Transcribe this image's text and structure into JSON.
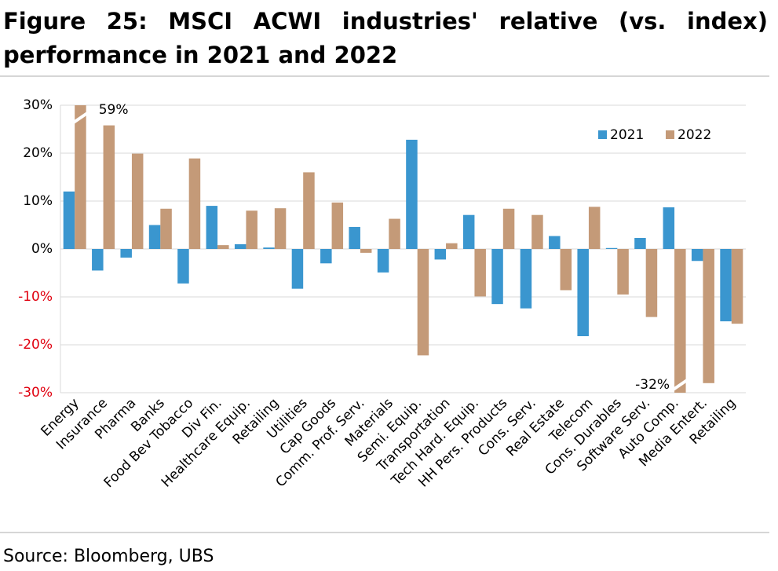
{
  "chart_data": {
    "type": "bar",
    "title": "Figure 25: MSCI ACWI industries' relative (vs. index) performance in 2021 and 2022",
    "source": "Source: Bloomberg, UBS",
    "categories": [
      "Energy",
      "Insurance",
      "Pharma",
      "Banks",
      "Food Bev Tobacco",
      "Div Fin.",
      "Healthcare Equip.",
      "Retailing",
      "Utilities",
      "Cap Goods",
      "Comm. Prof. Serv.",
      "Materials",
      "Semi. Equip.",
      "Transportation",
      "Tech Hard. Equip.",
      "HH Pers. Products",
      "Cons. Serv.",
      "Real Estate",
      "Telecom",
      "Cons. Durables",
      "Software Serv.",
      "Auto Comp.",
      "Media Entert.",
      "Retailing"
    ],
    "series": [
      {
        "name": "2021",
        "color": "#3a96cf",
        "values": [
          12.0,
          -4.5,
          -1.8,
          5.0,
          -7.2,
          9.0,
          1.0,
          0.3,
          -8.3,
          -3.0,
          4.6,
          -4.9,
          22.8,
          -2.2,
          7.1,
          -11.5,
          -12.4,
          2.7,
          -18.2,
          0.2,
          2.3,
          8.7,
          -2.5,
          -15.1
        ]
      },
      {
        "name": "2022",
        "color": "#c49a78",
        "values": [
          59,
          25.8,
          19.9,
          8.4,
          18.9,
          0.8,
          8.0,
          8.5,
          16.0,
          9.7,
          -0.8,
          6.3,
          -22.2,
          1.2,
          -9.9,
          8.4,
          7.1,
          -8.6,
          8.8,
          -9.5,
          -14.2,
          -32,
          -28.0,
          -15.6
        ],
        "value_labels": [
          "59%",
          null,
          null,
          null,
          null,
          null,
          null,
          null,
          null,
          null,
          null,
          null,
          null,
          null,
          null,
          null,
          null,
          null,
          null,
          null,
          null,
          "-32%",
          null,
          null
        ]
      }
    ],
    "ylim": [
      -30,
      30
    ],
    "yticks": [
      {
        "value": -30,
        "label": "-30%"
      },
      {
        "value": -20,
        "label": "-20%"
      },
      {
        "value": -10,
        "label": "-10%"
      },
      {
        "value": 0,
        "label": "0%"
      },
      {
        "value": 10,
        "label": "10%"
      },
      {
        "value": 20,
        "label": "20%"
      },
      {
        "value": 30,
        "label": "30%"
      }
    ],
    "negative_tick_color": "#e0000f",
    "grid": true,
    "legend": "upper right"
  }
}
